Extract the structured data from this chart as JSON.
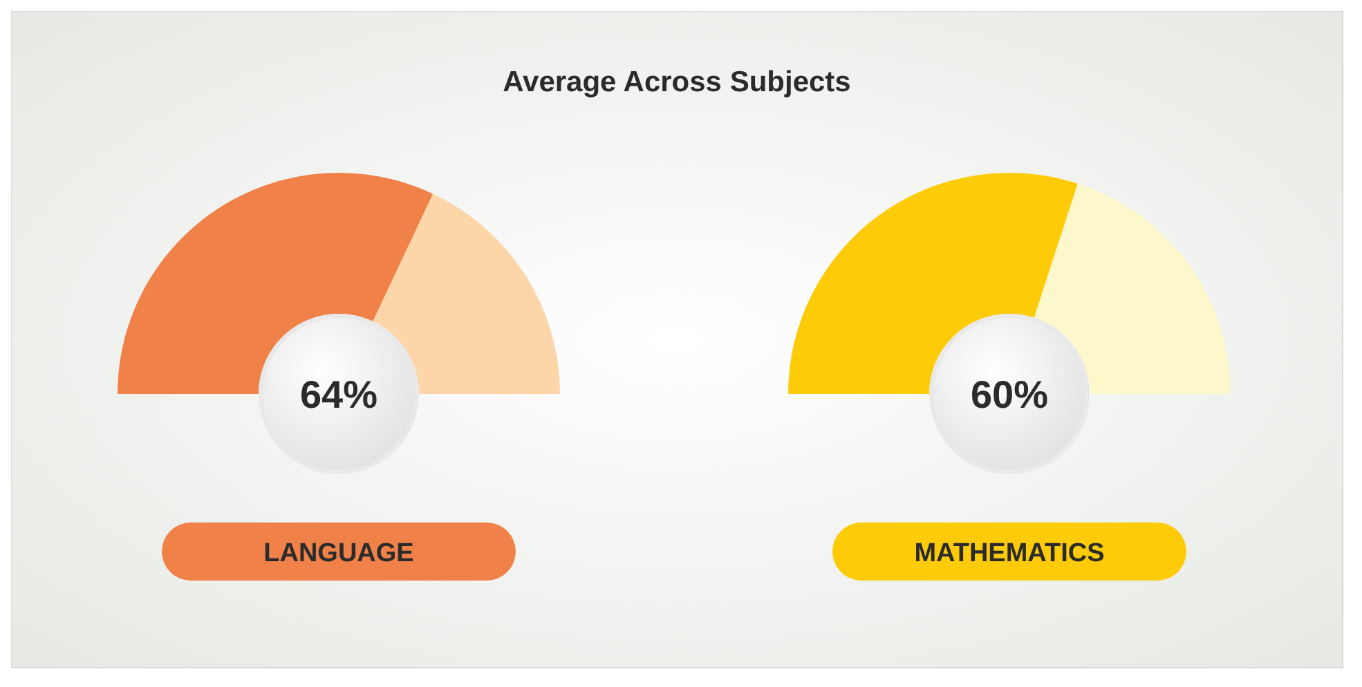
{
  "chart_data": [
    {
      "type": "other",
      "title": "Average Across Subjects"
    },
    {
      "type": "donut",
      "title": "LANGUAGE",
      "categories": [
        null,
        null
      ],
      "values": [
        64,
        36
      ],
      "colors": [
        "#f08149",
        "#fcd5a8"
      ],
      "annotations": [
        "64%"
      ]
    },
    {
      "type": "donut",
      "title": "MATHEMATICS",
      "categories": [
        null,
        null
      ],
      "values": [
        60,
        40
      ],
      "colors": [
        "#fdcb08",
        "#fdf7cc"
      ],
      "annotations": [
        "60%"
      ]
    }
  ]
}
